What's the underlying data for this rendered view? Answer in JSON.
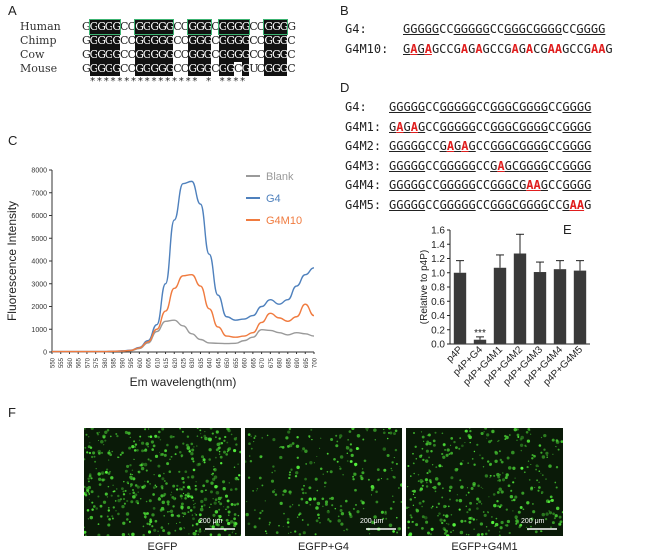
{
  "panels": {
    "A": {
      "label": "A",
      "species": [
        "Human",
        "Chimp",
        "Cow",
        "Mouse"
      ],
      "sequences": [
        "GGGGGCCGGGGGCCGGGCGGGGCCGGGG",
        "GGGGGCCGGGGGCCGGGCGGGGCCGGGC",
        "GGGGGCCGGGGGCCGGGCGGGGCCGGGC",
        "GGGGGCCGGGGGCCGGGCGGCGUCGGGC"
      ],
      "conservation": "**************** * ****"
    },
    "B": {
      "label": "B",
      "rows": [
        {
          "name": "G4:",
          "segments": [
            [
              "GGGGG",
              "u"
            ],
            [
              "CC",
              ""
            ],
            [
              "GGGGG",
              "u"
            ],
            [
              "CC",
              ""
            ],
            [
              "GGGC",
              "u"
            ],
            [
              "",
              ""
            ],
            [
              "GGGG",
              "u"
            ],
            [
              "CC",
              ""
            ],
            [
              "GGGG",
              "u"
            ]
          ]
        },
        {
          "name": "G4M10:",
          "segments": [
            [
              "G",
              "u"
            ],
            [
              "A",
              "ur"
            ],
            [
              "G",
              "u"
            ],
            [
              "A",
              "ur"
            ],
            [
              "GCCG",
              ""
            ],
            [
              "A",
              "r"
            ],
            [
              "G",
              ""
            ],
            [
              "A",
              "r"
            ],
            [
              "GCCG",
              ""
            ],
            [
              "A",
              "r"
            ],
            [
              "G",
              ""
            ],
            [
              "A",
              "r"
            ],
            [
              "CG",
              ""
            ],
            [
              "AA",
              "r"
            ],
            [
              "GCCG",
              ""
            ],
            [
              "AA",
              "r"
            ],
            [
              "G",
              ""
            ]
          ]
        }
      ]
    },
    "C": {
      "label": "C"
    },
    "D": {
      "label": "D",
      "rows": [
        {
          "name": "G4:",
          "segments": [
            [
              "GGGGG",
              "u"
            ],
            [
              "CC",
              ""
            ],
            [
              "GGGGG",
              "u"
            ],
            [
              "CC",
              ""
            ],
            [
              "GGGC",
              "u"
            ],
            [
              "GGGG",
              "u"
            ],
            [
              "CC",
              ""
            ],
            [
              "GGGG",
              "u"
            ]
          ]
        },
        {
          "name": "G4M1:",
          "segments": [
            [
              "G",
              "u"
            ],
            [
              "A",
              "ur"
            ],
            [
              "G",
              "u"
            ],
            [
              "A",
              "ur"
            ],
            [
              "G",
              "u"
            ],
            [
              "CC",
              ""
            ],
            [
              "GGGGG",
              "u"
            ],
            [
              "CC",
              ""
            ],
            [
              "GGGC",
              "u"
            ],
            [
              "GGGG",
              "u"
            ],
            [
              "CC",
              ""
            ],
            [
              "GGGG",
              "u"
            ]
          ]
        },
        {
          "name": "G4M2:",
          "segments": [
            [
              "GGGGG",
              "u"
            ],
            [
              "CC",
              ""
            ],
            [
              "G",
              "u"
            ],
            [
              "A",
              "ur"
            ],
            [
              "G",
              "u"
            ],
            [
              "A",
              "ur"
            ],
            [
              "G",
              "u"
            ],
            [
              "CC",
              ""
            ],
            [
              "GGGC",
              "u"
            ],
            [
              "GGGG",
              "u"
            ],
            [
              "CC",
              ""
            ],
            [
              "GGGG",
              "u"
            ]
          ]
        },
        {
          "name": "G4M3:",
          "segments": [
            [
              "GGGGG",
              "u"
            ],
            [
              "CC",
              ""
            ],
            [
              "GGGGG",
              "u"
            ],
            [
              "CC",
              ""
            ],
            [
              "G",
              "u"
            ],
            [
              "A",
              "ur"
            ],
            [
              "GC",
              "u"
            ],
            [
              "GGGG",
              "u"
            ],
            [
              "CC",
              ""
            ],
            [
              "GGGG",
              "u"
            ]
          ]
        },
        {
          "name": "G4M4:",
          "segments": [
            [
              "GGGGG",
              "u"
            ],
            [
              "CC",
              ""
            ],
            [
              "GGGGG",
              "u"
            ],
            [
              "CC",
              ""
            ],
            [
              "GGGC",
              "u"
            ],
            [
              "G",
              "u"
            ],
            [
              "AA",
              "ur"
            ],
            [
              "G",
              "u"
            ],
            [
              "CC",
              ""
            ],
            [
              "GGGG",
              "u"
            ]
          ]
        },
        {
          "name": "G4M5:",
          "segments": [
            [
              "GGGGG",
              "u"
            ],
            [
              "CC",
              ""
            ],
            [
              "GGGGG",
              "u"
            ],
            [
              "CC",
              ""
            ],
            [
              "GGGC",
              "u"
            ],
            [
              "GGGG",
              "u"
            ],
            [
              "CC",
              ""
            ],
            [
              "G",
              "u"
            ],
            [
              "AA",
              "ur"
            ],
            [
              "G",
              ""
            ]
          ]
        }
      ]
    },
    "E": {
      "label": "E"
    },
    "F": {
      "label": "F",
      "scale_bar": "200 μm",
      "captions": [
        "EGFP",
        "EGFP+G4",
        "EGFP+G4M1"
      ]
    }
  },
  "chart_data": [
    {
      "type": "line",
      "panel": "C",
      "xlabel": "Em wavelength(nm)",
      "ylabel": "Fluorescence Intensity",
      "x": [
        550,
        555,
        560,
        565,
        570,
        575,
        580,
        585,
        590,
        595,
        600,
        605,
        610,
        615,
        620,
        625,
        630,
        635,
        640,
        645,
        650,
        655,
        660,
        665,
        670,
        675,
        680,
        685,
        690,
        695,
        700
      ],
      "ylim": [
        0,
        8000
      ],
      "yticks": [
        0,
        1000,
        2000,
        3000,
        4000,
        5000,
        6000,
        7000,
        8000
      ],
      "legend_position": "top-right",
      "series": [
        {
          "name": "Blank",
          "color": "#9a9a9a",
          "values": [
            20,
            20,
            20,
            20,
            20,
            20,
            20,
            30,
            40,
            60,
            150,
            400,
            900,
            1350,
            1400,
            1150,
            800,
            550,
            400,
            380,
            370,
            380,
            500,
            650,
            980,
            950,
            850,
            750,
            850,
            800,
            700
          ]
        },
        {
          "name": "G4",
          "color": "#4f81bd",
          "values": [
            20,
            20,
            20,
            20,
            20,
            20,
            20,
            30,
            50,
            80,
            200,
            500,
            1200,
            3000,
            5800,
            7400,
            7500,
            6500,
            4300,
            2500,
            1550,
            1400,
            1450,
            1600,
            2000,
            2300,
            2100,
            2300,
            2900,
            3400,
            3700
          ]
        },
        {
          "name": "G4M10",
          "color": "#f07b3f",
          "values": [
            20,
            20,
            20,
            20,
            20,
            20,
            20,
            30,
            40,
            70,
            180,
            450,
            1000,
            1800,
            2800,
            3350,
            3400,
            2900,
            1900,
            1100,
            700,
            650,
            700,
            850,
            1300,
            1700,
            1500,
            1350,
            1550,
            2100,
            1600
          ]
        }
      ]
    },
    {
      "type": "bar",
      "panel": "E",
      "ylabel_lines": [
        "Luciferase activity",
        "(Relative to p4P)"
      ],
      "categories": [
        "p4P",
        "p4P+G4",
        "p4P+G4M1",
        "p4P+G4M2",
        "p4P+G4M3",
        "p4P+G4M4",
        "p4P+G4M5"
      ],
      "values": [
        1.0,
        0.06,
        1.07,
        1.27,
        1.01,
        1.05,
        1.03
      ],
      "errors": [
        0.17,
        0.04,
        0.18,
        0.27,
        0.14,
        0.12,
        0.14
      ],
      "ylim": [
        0,
        1.6
      ],
      "yticks": [
        "0.0",
        "0.2",
        "0.4",
        "0.6",
        "0.8",
        "1.0",
        "1.2",
        "1.4",
        "1.6"
      ],
      "annotations": [
        {
          "category": "p4P+G4",
          "text": "***"
        }
      ],
      "bar_color": "#3a3a3a"
    }
  ]
}
